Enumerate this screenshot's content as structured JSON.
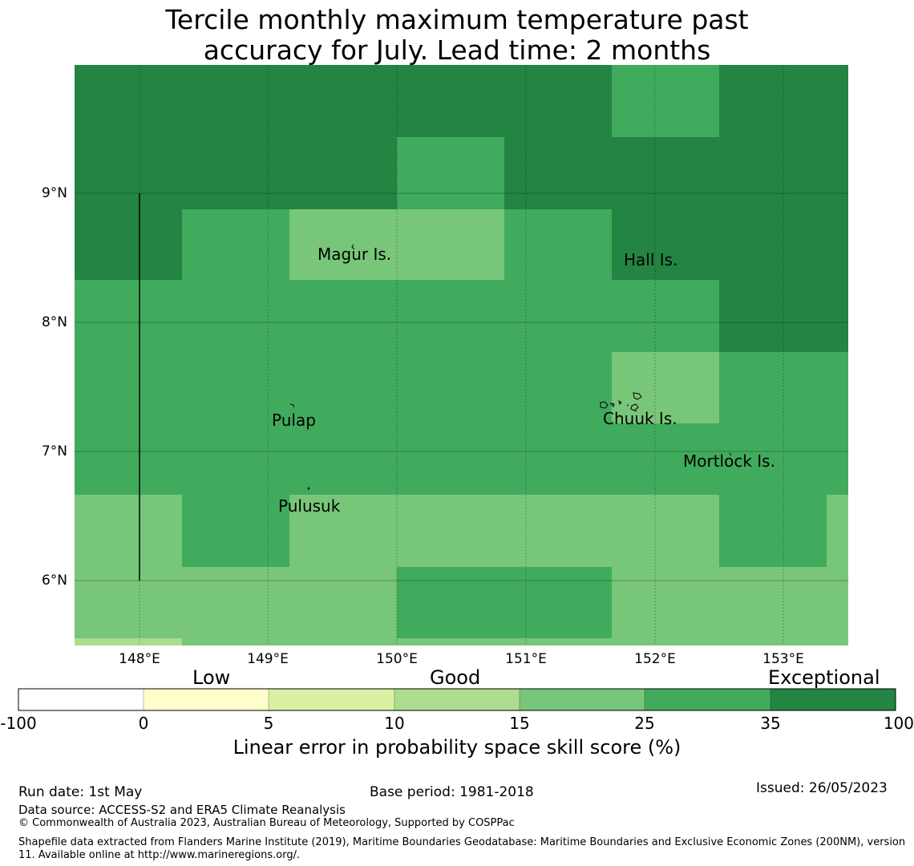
{
  "title_line1": "Tercile monthly maximum temperature past",
  "title_line2": "accuracy for July. Lead time: 2 months",
  "map": {
    "lat_labels": [
      "9°N",
      "8°N",
      "7°N",
      "6°N"
    ],
    "lon_labels": [
      "148°E",
      "149°E",
      "150°E",
      "151°E",
      "152°E",
      "153°E"
    ],
    "places": [
      "Magur Is.",
      "Hall Is.",
      "Pulap",
      "Chuuk Is.",
      "Mortlock Is.",
      "Pulusuk"
    ],
    "colors": {
      "exceptional": "#238443",
      "c25_35": "#41ab5d",
      "c15_25": "#78c679",
      "c10_15": "#addd8e",
      "c5_10": "#d9f0a3",
      "c0_5": "#ffffcc",
      "below0": "#ffffff"
    }
  },
  "colorbar": {
    "categories": [
      "Low",
      "Good",
      "Exceptional"
    ],
    "ticks": [
      "-100",
      "0",
      "5",
      "10",
      "15",
      "25",
      "35",
      "100"
    ],
    "label": "Linear error in probability space skill score (%)"
  },
  "footer": {
    "run_date": "Run date: 1st May",
    "base_period": "Base period: 1981-2018",
    "issued": "Issued: 26/05/2023",
    "data_source": "Data source: ACCESS-S2 and ERA5 Climate Reanalysis",
    "copyright": "© Commonwealth of Australia 2023, Australian Bureau of Meteorology, Supported by COSPPac",
    "shapefile": "Shapefile data extracted from Flanders Marine Institute (2019), Maritime Boundaries Geodatabase: Maritime Boundaries and Exclusive Economic Zones (200NM), version 11. Available online at http://www.marineregions.org/."
  }
}
